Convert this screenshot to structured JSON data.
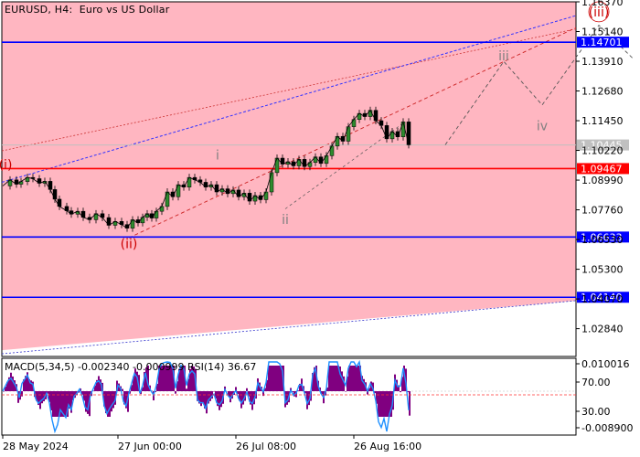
{
  "header": {
    "symbol": "EURUSD",
    "timeframe": "H4",
    "description": "Euro vs US Dollar"
  },
  "chart_data": {
    "type": "line",
    "title": "EURUSD, H4:  Euro vs US Dollar",
    "price_axis": {
      "ylim": [
        1.0169,
        1.1637
      ],
      "ticks": [
        "1.16370",
        "1.15140",
        "1.13910",
        "1.12680",
        "1.11450",
        "1.10220",
        "1.08990",
        "1.07760",
        "1.06530",
        "1.05300",
        "1.04070",
        "1.02840"
      ]
    },
    "time_axis": {
      "labels": [
        "28 May 2024",
        "27 Jun 00:00",
        "26 Jul 08:00",
        "26 Aug 16:00"
      ]
    },
    "price_series": {
      "name": "EURUSD H4 close",
      "bar_index": [
        0,
        8,
        15,
        20,
        27,
        33,
        40,
        46,
        52,
        57,
        62,
        70,
        75,
        82,
        88,
        95,
        102,
        109,
        116,
        123,
        130,
        136,
        142,
        148,
        153,
        158,
        163,
        168,
        174,
        180,
        186,
        192,
        198,
        204,
        210,
        216,
        222,
        228,
        234,
        240,
        246,
        252,
        258,
        264,
        270,
        276,
        282,
        288,
        294,
        300,
        306,
        312,
        318,
        324,
        330,
        336,
        342,
        348,
        354,
        360,
        366,
        372,
        378,
        384,
        390,
        396,
        402,
        408,
        414,
        420,
        426,
        432,
        438,
        444
      ],
      "values": [
        1.0875,
        1.09,
        1.0882,
        1.0893,
        1.091,
        1.0905,
        1.0886,
        1.0894,
        1.086,
        1.082,
        1.079,
        1.0772,
        1.0758,
        1.077,
        1.0745,
        1.0735,
        1.076,
        1.0744,
        1.0712,
        1.0728,
        1.0715,
        1.07,
        1.0735,
        1.0722,
        1.0745,
        1.076,
        1.0742,
        1.077,
        1.079,
        1.085,
        1.083,
        1.088,
        1.087,
        1.091,
        1.09,
        1.089,
        1.087,
        1.088,
        1.085,
        1.0863,
        1.0843,
        1.0858,
        1.083,
        1.0845,
        1.0812,
        1.0835,
        1.0818,
        1.085,
        1.093,
        1.099,
        1.0965,
        1.0975,
        1.0958,
        1.0985,
        1.0955,
        1.0972,
        1.0995,
        1.0968,
        1.1,
        1.104,
        1.108,
        1.106,
        1.112,
        1.115,
        1.1175,
        1.1162,
        1.1188,
        1.1145,
        1.1125,
        1.107,
        1.11,
        1.1078,
        1.114,
        1.1045
      ]
    },
    "levels": [
      {
        "value": 1.147,
        "label": "1.14701",
        "color": "#0000ff"
      },
      {
        "value": 1.10445,
        "label": "1.10445",
        "color": "#c0c0c0"
      },
      {
        "value": 1.09467,
        "label": "1.09467",
        "color": "#ff0000"
      },
      {
        "value": 1.06633,
        "label": "1.06633",
        "color": "#0000ff"
      },
      {
        "value": 1.0414,
        "label": "1.04140",
        "color": "#0000ff"
      }
    ],
    "wave_labels": [
      {
        "text": "(i)",
        "bar": 3,
        "value": 1.0945,
        "color": "#cc0000"
      },
      {
        "text": "(ii)",
        "bar": 138,
        "value": 1.0618,
        "color": "#cc0000"
      },
      {
        "text": "i",
        "bar": 235,
        "value": 1.0985,
        "color": "#808080"
      },
      {
        "text": "ii",
        "bar": 309,
        "value": 1.0718,
        "color": "#808080"
      },
      {
        "text": "iii",
        "bar": 548,
        "value": 1.1395,
        "color": "#808080"
      },
      {
        "text": "iv",
        "bar": 590,
        "value": 1.1105,
        "color": "#808080"
      },
      {
        "text": "(iii)",
        "bar": 652,
        "value": 1.1577,
        "color": "#cc0000"
      }
    ],
    "forecast_path": {
      "bar": [
        484,
        548,
        590,
        652,
        690
      ],
      "value": [
        1.1045,
        1.139,
        1.121,
        1.154,
        1.14
      ]
    },
    "macd_pane": {
      "title": "MACD(5,34,5) -0.002340 -0.000999 RSI(14) 36.67",
      "axis_ticks": [
        "0.010016",
        "70.00",
        "30.00",
        "-0.008900"
      ]
    },
    "colors": {
      "background": "#ffb6c1",
      "axis_label_bg_blue": "#0000ff",
      "axis_label_bg_red": "#ff0000",
      "histogram": "#800080",
      "rsi": "#1e90ff"
    }
  }
}
